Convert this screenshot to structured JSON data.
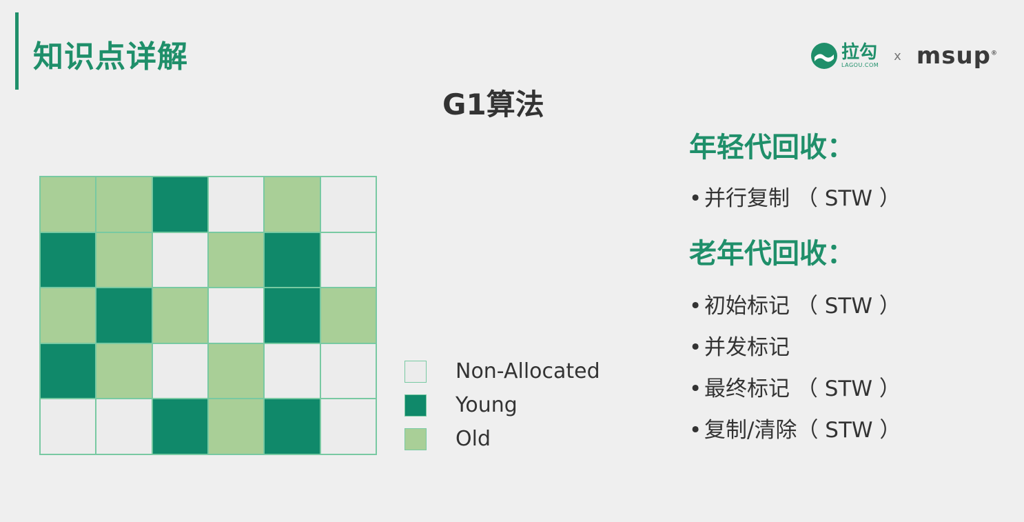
{
  "slide": {
    "section_title": "知识点详解",
    "title": "G1算法"
  },
  "logos": {
    "lagou_cn": "拉勾",
    "lagou_en": "LAGOU.COM",
    "separator": "x",
    "msup": "msup",
    "msup_mark": "®"
  },
  "colors": {
    "accent": "#1f8f6a",
    "non_allocated": "#ececec",
    "young": "#10896a",
    "old": "#a9cf97",
    "grid_line": "#78c9a2"
  },
  "heap_regions": [
    [
      "old",
      "old",
      "young",
      "non_allocated",
      "old",
      "non_allocated"
    ],
    [
      "young",
      "old",
      "non_allocated",
      "old",
      "young",
      "non_allocated"
    ],
    [
      "old",
      "young",
      "old",
      "non_allocated",
      "young",
      "old"
    ],
    [
      "young",
      "old",
      "non_allocated",
      "old",
      "non_allocated",
      "non_allocated"
    ],
    [
      "non_allocated",
      "non_allocated",
      "young",
      "old",
      "young",
      "non_allocated"
    ]
  ],
  "legend": [
    {
      "key": "non_allocated",
      "label": "Non-Allocated"
    },
    {
      "key": "young",
      "label": "Young"
    },
    {
      "key": "old",
      "label": "Old"
    }
  ],
  "young_gc": {
    "heading": "年轻代回收：",
    "items": [
      "并行复制 （ STW ）"
    ]
  },
  "old_gc": {
    "heading": "老年代回收：",
    "items": [
      "初始标记 （ STW ）",
      "并发标记",
      "最终标记 （ STW ）",
      "复制/清除（ STW ）"
    ]
  }
}
